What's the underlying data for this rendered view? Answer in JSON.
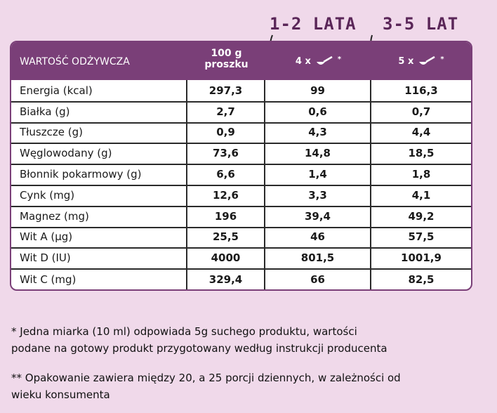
{
  "age_labels": [
    "1-2 LATA",
    "3-5 LAT"
  ],
  "table": {
    "header": {
      "nutrient": "WARTOŚĆ ODŻYWCZA",
      "per100": [
        "100 g",
        "proszku"
      ],
      "doses": [
        {
          "count": "4 x",
          "note": "*"
        },
        {
          "count": "5 x",
          "note": "*"
        }
      ]
    },
    "rows": [
      [
        "Energia (kcal)",
        "297,3",
        "99",
        "116,3"
      ],
      [
        "Białka  (g)",
        "2,7",
        "0,6",
        "0,7"
      ],
      [
        "Tłuszcze  (g)",
        "0,9",
        "4,3",
        "4,4"
      ],
      [
        "Węglowodany  (g)",
        "73,6",
        "14,8",
        "18,5"
      ],
      [
        "Błonnik pokarmowy (g)",
        "6,6",
        "1,4",
        "1,8"
      ],
      [
        "Cynk (mg)",
        "12,6",
        "3,3",
        "4,1"
      ],
      [
        "Magnez (mg)",
        "196",
        "39,4",
        "49,2"
      ],
      [
        "Wit A (µg)",
        "25,5",
        "46",
        "57,5"
      ],
      [
        "Wit D (IU)",
        "4000",
        "801,5",
        "1001,9"
      ],
      [
        "Wit C (mg)",
        "329,4",
        "66",
        "82,5"
      ]
    ]
  },
  "footnotes": [
    [
      "* Jedna miarka (10 ml) odpowiada 5g suchego produktu, wartości",
      "podane na gotowy produkt przygotowany według instrukcji  producenta"
    ],
    [
      "** Opakowanie zawiera między 20, a 25 porcji dziennych, w zależności od",
      "wieku konsumenta"
    ]
  ]
}
